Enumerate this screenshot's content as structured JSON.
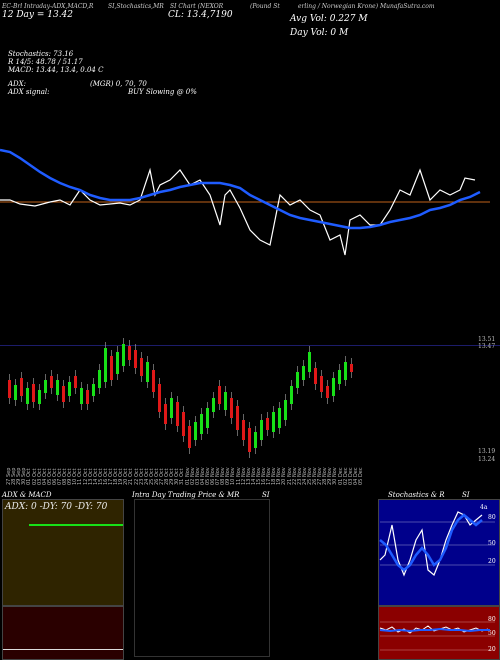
{
  "header": {
    "line1": "EC-Brl Intraday-ADX,MACD,R",
    "line1b": "SI,Stochastics,MR",
    "line1c": "SI Chart (NEXOR",
    "line1d": "(Pound St",
    "line1e": "erling / Norwegian Krone) MunafaSutra.com",
    "line2": "12 Day = 13.42",
    "cl_label": "CL: 13.4,7190",
    "avg_vol": "Avg Vol: 0.227 M",
    "day_vol": "Day Vol: 0 M"
  },
  "stats": {
    "stoch": "Stochastics: 73.16",
    "r": "R 14/5: 48.78 / 51.17",
    "macd": "MACD: 13.44, 13.4, 0.04 C",
    "adx": "ADX:",
    "adx_mid": "(MGR) 0, 70, 70",
    "adx_signal": "ADX signal:",
    "buy_slowing": "BUY Slowing @ 0%"
  },
  "price_labels": {
    "top": "13.51",
    "top2": "13.47",
    "bottom": "13.19",
    "bottom2": "13.24"
  },
  "dates": [
    "27 Sep",
    "28 Sep",
    "29 Sep",
    "30 Sep",
    "01 Oct",
    "02 Oct",
    "03 Oct",
    "04 Oct",
    "05 Oct",
    "06 Oct",
    "07 Oct",
    "08 Oct",
    "09 Oct",
    "10 Oct",
    "11 Oct",
    "12 Oct",
    "13 Oct",
    "14 Oct",
    "15 Oct",
    "16 Oct",
    "17 Oct",
    "18 Oct",
    "19 Oct",
    "20 Oct",
    "21 Oct",
    "22 Oct",
    "23 Oct",
    "24 Oct",
    "25 Oct",
    "26 Oct",
    "27 Oct",
    "28 Oct",
    "29 Oct",
    "30 Oct",
    "31 Oct",
    "01 Nov",
    "02 Nov",
    "03 Nov",
    "04 Nov",
    "05 Nov",
    "06 Nov",
    "07 Nov",
    "08 Nov",
    "09 Nov",
    "10 Nov",
    "11 Nov",
    "12 Nov",
    "13 Nov",
    "14 Nov",
    "15 Nov",
    "16 Nov",
    "17 Nov",
    "18 Nov",
    "19 Nov",
    "20 Nov",
    "21 Nov",
    "22 Nov",
    "23 Nov",
    "24 Nov",
    "25 Nov",
    "26 Nov",
    "27 Nov",
    "28 Nov",
    "29 Nov",
    "30 Nov",
    "01 Dec",
    "02 Dec",
    "03 Dec",
    "04 Dec",
    "05 Dec"
  ],
  "panels": {
    "adx_title": "ADX  & MACD",
    "adx_values": "ADX: 0  -DY: 70  -DY: 70",
    "intra_title": "Intra  Day Trading Price  & MR",
    "intra_si": "SI",
    "stoch_title": "Stochastics & R",
    "stoch_si": "SI",
    "stoch_ticks": [
      "80",
      "50",
      "20"
    ],
    "rsi_ticks": [
      "80",
      "50",
      "20"
    ],
    "stoch_top": "4a"
  },
  "colors": {
    "up": "#18e018",
    "down": "#e01818",
    "ma": "#1f5cff",
    "stoch_bg": "#00008b",
    "rsi_bg": "#8b0000",
    "adx_bg": "#3a2a00",
    "macd_bg": "#2a0000"
  },
  "chart_data": [
    {
      "type": "line",
      "series": [],
      "x": [],
      "title": ""
    }
  ]
}
